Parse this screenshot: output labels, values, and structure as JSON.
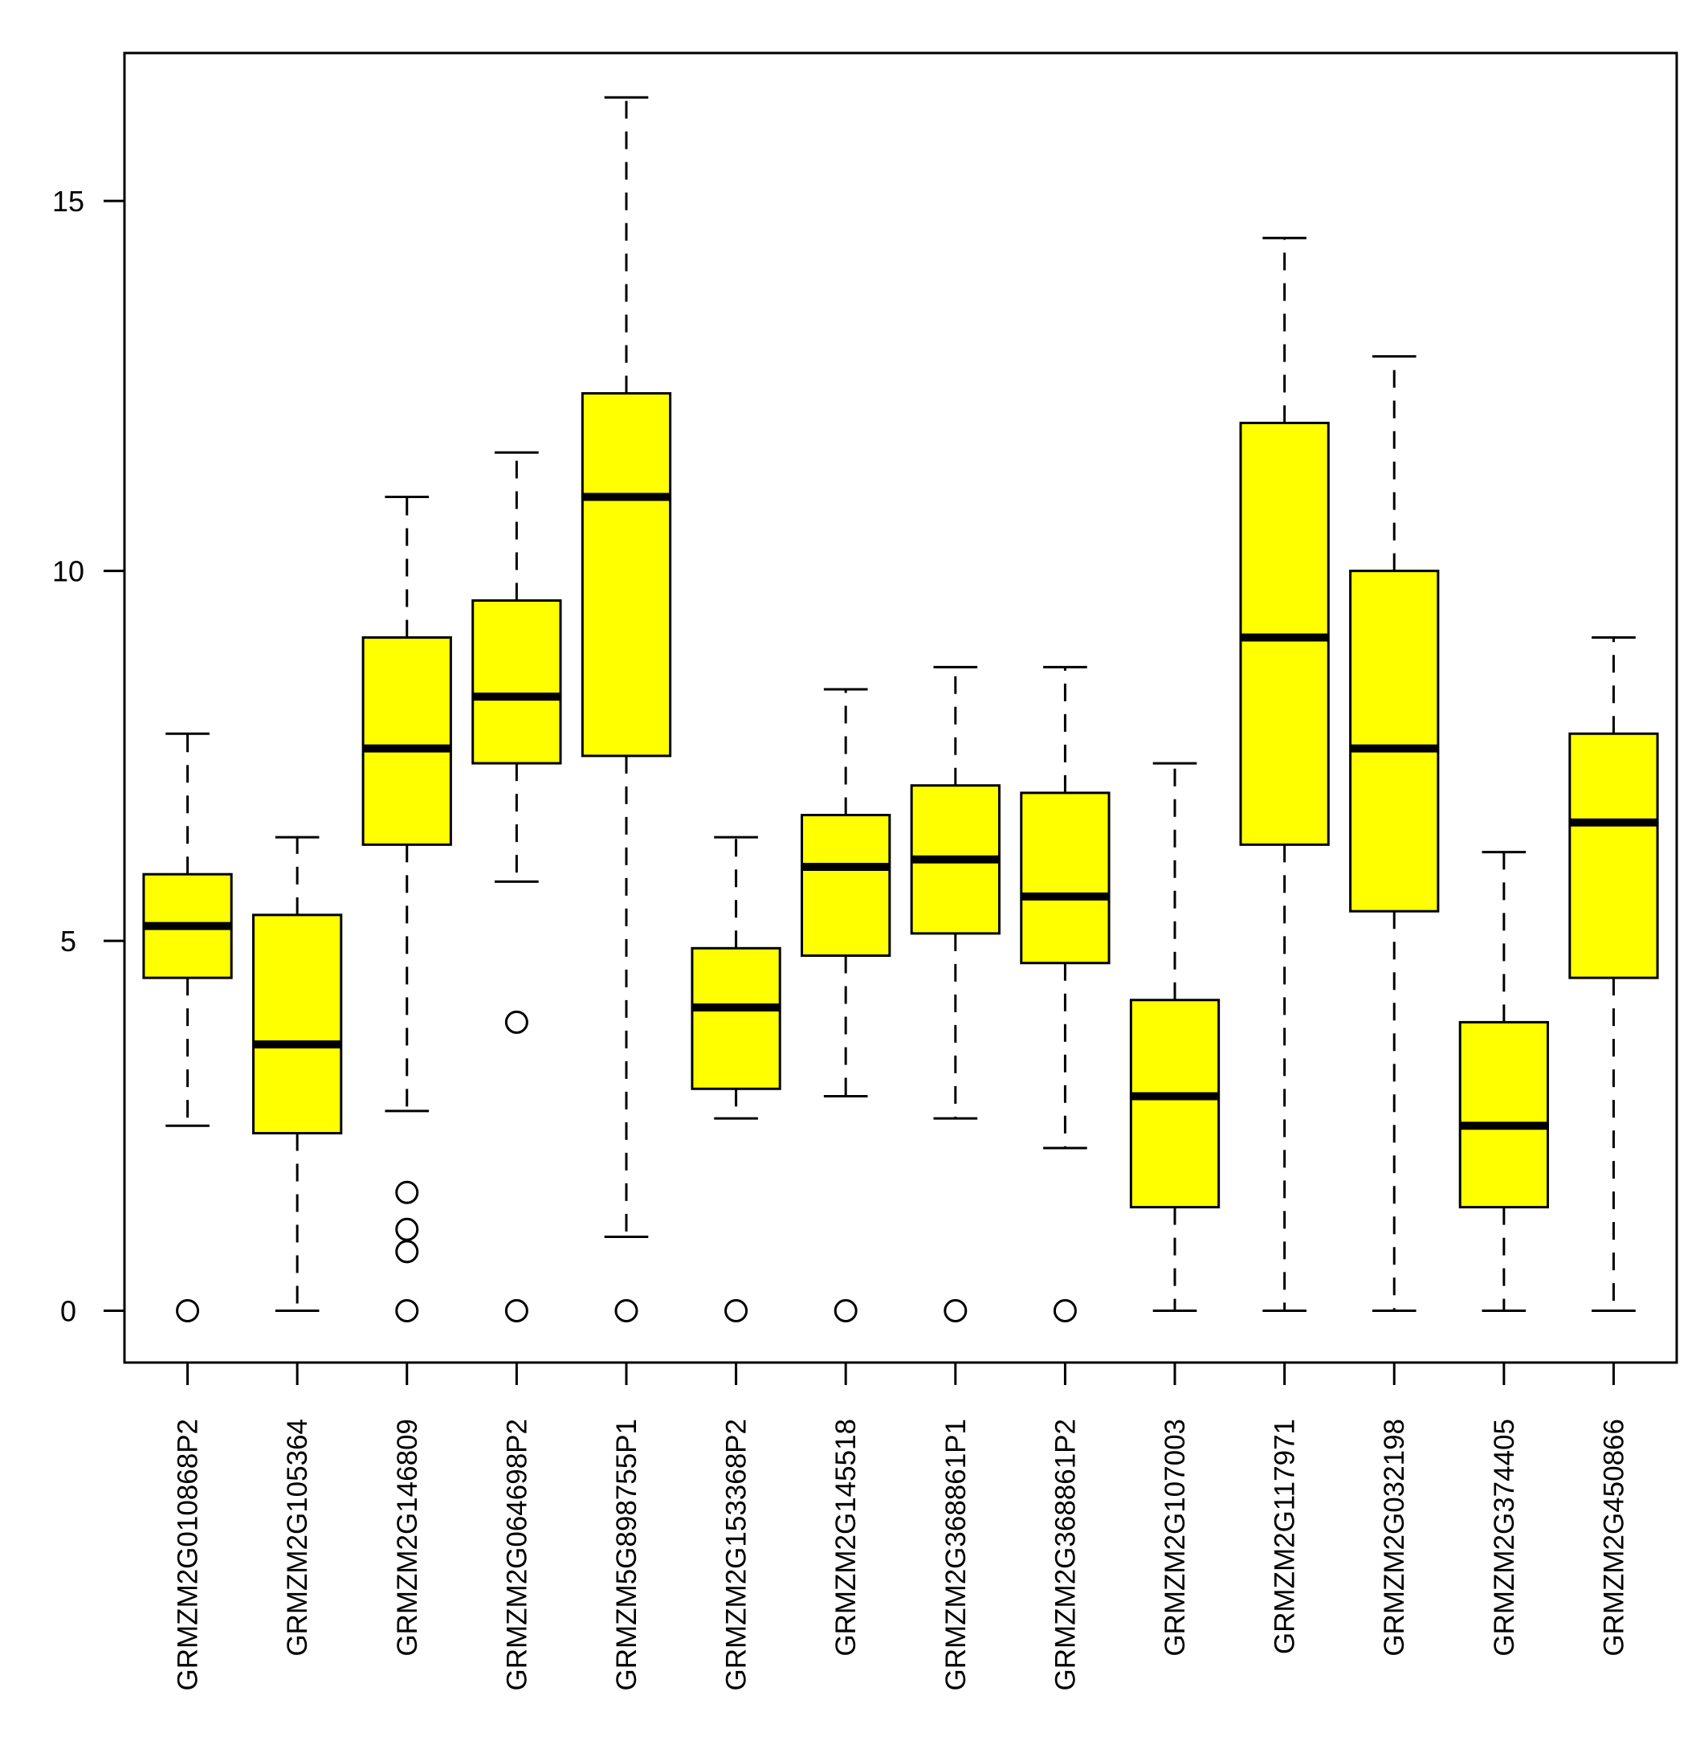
{
  "chart_data": {
    "type": "boxplot",
    "title": "",
    "xlabel": "",
    "ylabel": "",
    "ylim": [
      -0.7,
      17.0
    ],
    "yticks": [
      0,
      5,
      10,
      15
    ],
    "ytick_labels": [
      "0",
      "5",
      "10",
      "15"
    ],
    "grid": false,
    "box_fill": "#ffff00",
    "line_color": "#000000",
    "categories": [
      "GRMZM2G010868P2",
      "GRMZM2G105364",
      "GRMZM2G146809",
      "GRMZM2G064698P2",
      "GRMZM5G898755P1",
      "GRMZM2G153368P2",
      "GRMZM2G145518",
      "GRMZM2G368861P1",
      "GRMZM2G368861P2",
      "GRMZM2G107003",
      "GRMZM2G117971",
      "GRMZM2G032198",
      "GRMZM2G374405",
      "GRMZM2G450866"
    ],
    "boxes": [
      {
        "whisker_low": 2.5,
        "q1": 4.5,
        "median": 5.2,
        "q3": 5.9,
        "whisker_high": 7.8,
        "outliers": [
          0
        ]
      },
      {
        "whisker_low": 0,
        "q1": 2.4,
        "median": 3.6,
        "q3": 5.35,
        "whisker_high": 6.4,
        "outliers": []
      },
      {
        "whisker_low": 2.7,
        "q1": 6.3,
        "median": 7.6,
        "q3": 9.1,
        "whisker_high": 11.0,
        "outliers": [
          1.6,
          1.1,
          0.8,
          0
        ]
      },
      {
        "whisker_low": 5.8,
        "q1": 7.4,
        "median": 8.3,
        "q3": 9.6,
        "whisker_high": 11.6,
        "outliers": [
          3.9,
          0
        ]
      },
      {
        "whisker_low": 1.0,
        "q1": 7.5,
        "median": 11.0,
        "q3": 12.4,
        "whisker_high": 16.4,
        "outliers": [
          0
        ]
      },
      {
        "whisker_low": 2.6,
        "q1": 3.0,
        "median": 4.1,
        "q3": 4.9,
        "whisker_high": 6.4,
        "outliers": [
          0
        ]
      },
      {
        "whisker_low": 2.9,
        "q1": 4.8,
        "median": 6.0,
        "q3": 6.7,
        "whisker_high": 8.4,
        "outliers": [
          0
        ]
      },
      {
        "whisker_low": 2.6,
        "q1": 5.1,
        "median": 6.1,
        "q3": 7.1,
        "whisker_high": 8.7,
        "outliers": [
          0
        ]
      },
      {
        "whisker_low": 2.2,
        "q1": 4.7,
        "median": 5.6,
        "q3": 7.0,
        "whisker_high": 8.7,
        "outliers": [
          0
        ]
      },
      {
        "whisker_low": 0,
        "q1": 1.4,
        "median": 2.9,
        "q3": 4.2,
        "whisker_high": 7.4,
        "outliers": []
      },
      {
        "whisker_low": 0,
        "q1": 6.3,
        "median": 9.1,
        "q3": 12.0,
        "whisker_high": 14.5,
        "outliers": []
      },
      {
        "whisker_low": 0,
        "q1": 5.4,
        "median": 7.6,
        "q3": 10.0,
        "whisker_high": 12.9,
        "outliers": []
      },
      {
        "whisker_low": 0,
        "q1": 1.4,
        "median": 2.5,
        "q3": 3.9,
        "whisker_high": 6.2,
        "outliers": []
      },
      {
        "whisker_low": 0,
        "q1": 4.5,
        "median": 6.6,
        "q3": 7.8,
        "whisker_high": 9.1,
        "outliers": []
      }
    ]
  }
}
